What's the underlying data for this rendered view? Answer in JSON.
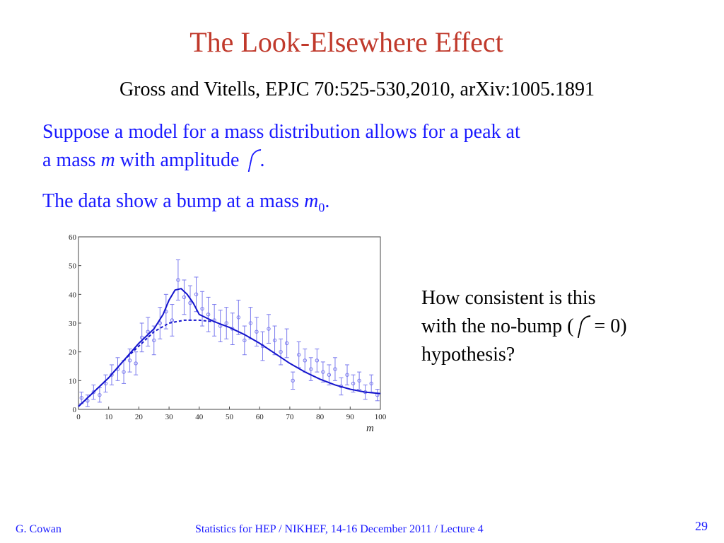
{
  "slide": {
    "title": "The Look-Elsewhere Effect",
    "citation": "Gross and Vitells, EPJC 70:525-530,2010, arXiv:1005.1891",
    "line1": "Suppose a model for a mass distribution allows for a peak at",
    "line2_a": "a mass ",
    "line2_m": "m",
    "line2_b": " with amplitude ",
    "line2_end": ".",
    "line3_a": "The data show a bump at a mass ",
    "line3_m": "m",
    "line3_sub": "0",
    "line3_end": ".",
    "side_line1": "How consistent is this",
    "side_line2_a": "with the no-bump (",
    "side_line2_b": " = 0)",
    "side_line3": "hypothesis?",
    "footer_author": "G. Cowan",
    "footer_course": "Statistics for HEP / NIKHEF, 14-16 December  2011 / Lecture 4",
    "page_number": "29"
  },
  "colors": {
    "title": "#c0392b",
    "text_blue": "#1a1aff",
    "data_points": "#7a7aee",
    "fit_curve": "#1414cc"
  },
  "chart_data": {
    "type": "scatter",
    "xlabel": "m",
    "ylabel": "",
    "xlim": [
      0,
      100
    ],
    "ylim": [
      0,
      60
    ],
    "xticks": [
      0,
      10,
      20,
      30,
      40,
      50,
      60,
      70,
      80,
      90,
      100
    ],
    "yticks": [
      0,
      10,
      20,
      30,
      40,
      50,
      60
    ],
    "series": [
      {
        "style": "points with error bars",
        "x": [
          1,
          3,
          5,
          7,
          9,
          11,
          13,
          15,
          17,
          19,
          21,
          23,
          25,
          27,
          29,
          31,
          33,
          35,
          37,
          39,
          41,
          43,
          45,
          47,
          49,
          51,
          53,
          55,
          57,
          59,
          61,
          63,
          65,
          67,
          69,
          71,
          73,
          75,
          77,
          79,
          81,
          83,
          85,
          87,
          89,
          91,
          93,
          95,
          97,
          99
        ],
        "y": [
          4,
          3,
          6,
          5,
          9,
          12,
          14,
          13,
          17,
          16,
          25,
          27,
          24,
          30,
          34,
          31,
          45,
          39,
          37,
          40,
          35,
          33,
          31,
          29,
          30,
          28,
          32,
          24,
          30,
          27,
          22,
          28,
          24,
          20,
          23,
          10,
          19,
          17,
          14,
          17,
          13,
          12,
          14,
          8,
          12,
          9,
          10,
          6,
          9,
          5
        ],
        "errors": [
          2,
          2,
          2.5,
          2.5,
          3,
          3.5,
          4,
          4,
          4,
          4,
          5,
          5,
          5,
          5.5,
          6,
          5.5,
          7,
          6,
          6,
          6,
          6,
          6,
          5.5,
          5.5,
          5.5,
          5.5,
          6,
          5,
          5.5,
          5,
          5,
          5,
          5,
          4.5,
          5,
          3,
          4.5,
          4,
          4,
          4,
          3.5,
          3.5,
          4,
          3,
          3.5,
          3,
          3,
          2.5,
          3,
          2
        ]
      },
      {
        "style": "solid line",
        "x": [
          0,
          5,
          10,
          15,
          20,
          25,
          28,
          30,
          32,
          34,
          36,
          38,
          40,
          45,
          50,
          55,
          60,
          65,
          70,
          75,
          80,
          85,
          90,
          95,
          100
        ],
        "y": [
          1,
          6,
          11,
          17,
          23,
          28,
          33,
          38,
          41.5,
          42,
          40,
          37,
          33,
          30.5,
          28.5,
          26,
          23,
          19.5,
          16,
          13,
          10.5,
          8.5,
          7,
          6,
          5.5
        ]
      },
      {
        "style": "dashed line",
        "x": [
          0,
          5,
          10,
          15,
          20,
          25,
          30,
          35,
          40,
          45
        ],
        "y": [
          1,
          6,
          11,
          17,
          22,
          27,
          30,
          31,
          31,
          30.5
        ]
      }
    ]
  }
}
